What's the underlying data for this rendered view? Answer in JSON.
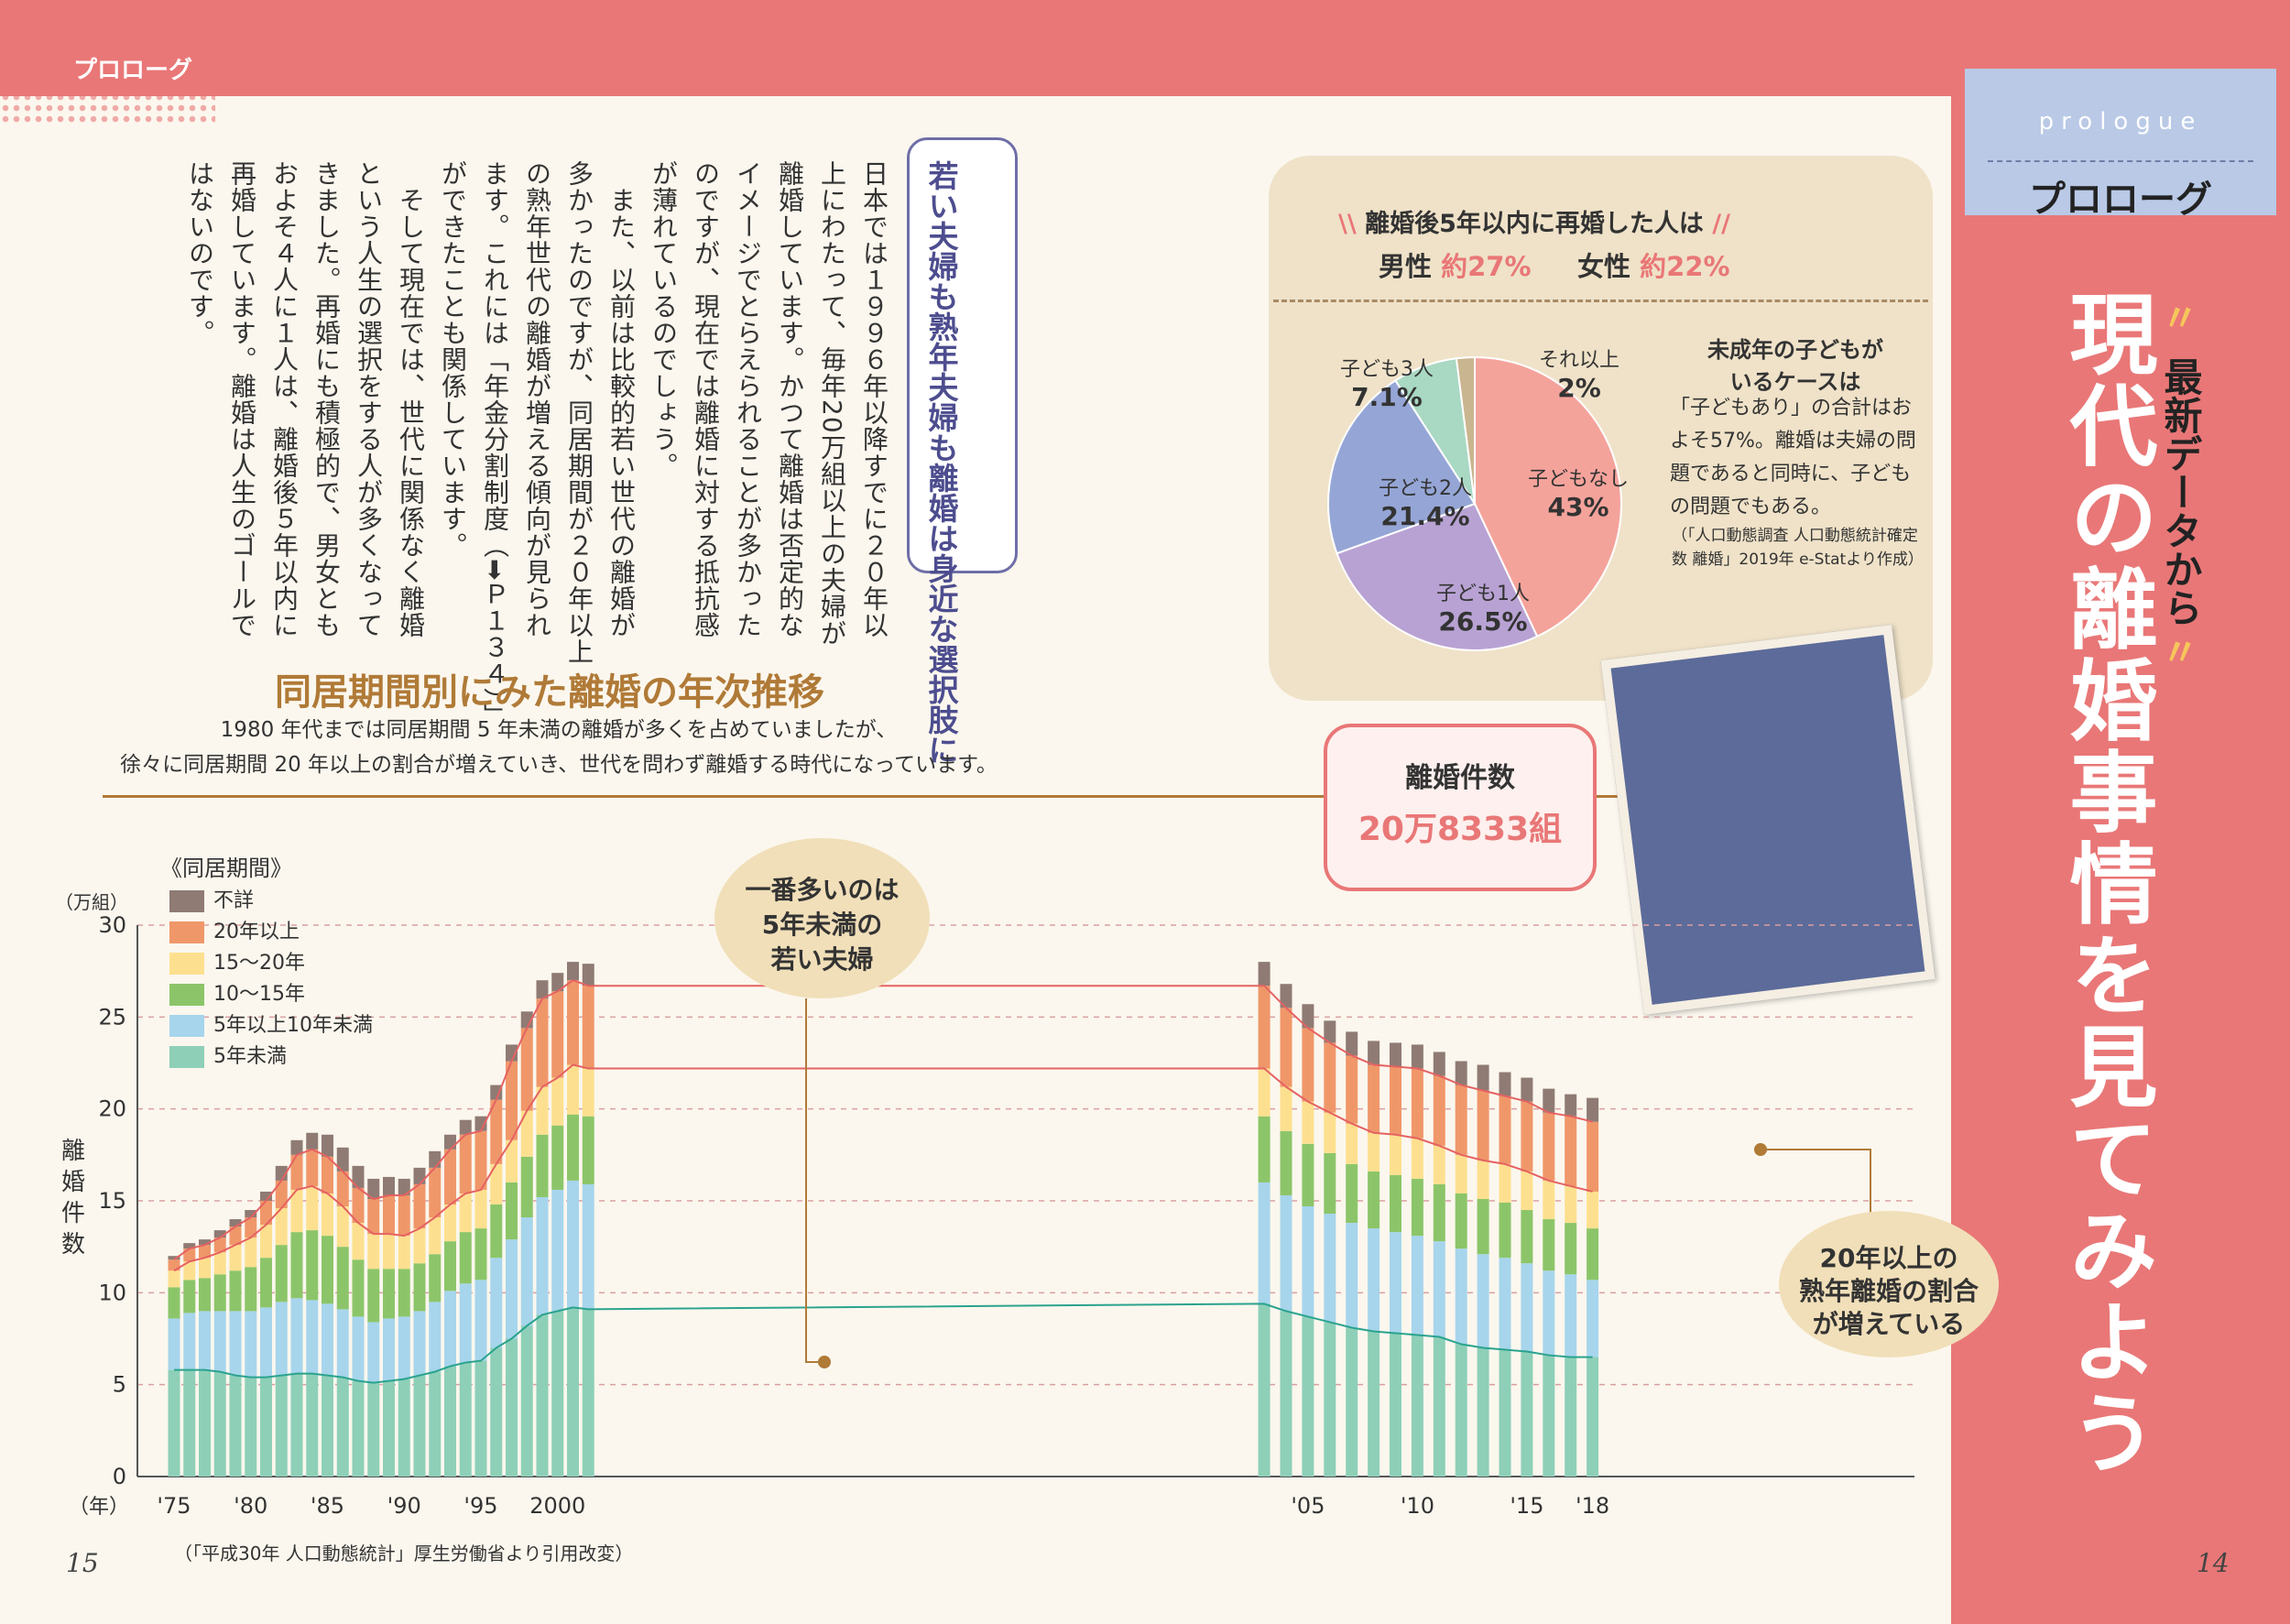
{
  "header": {
    "corner_label": "プロローグ",
    "tag_en": "prologue",
    "tag_jp": "プロローグ"
  },
  "title": {
    "sub": "最新データから",
    "main": "現代の離婚事情を見てみよう"
  },
  "page_numbers": {
    "left": "15",
    "right": "14"
  },
  "callout": "若い夫婦も熟年夫婦も離婚は身近な選択肢に",
  "body_columns": [
    "日本では１９９６年以降すでに２０年以",
    "上にわたって、毎年20万組以上の夫婦が",
    "離婚しています。かつて離婚は否定的な",
    "イメージでとらえられることが多かった",
    "のですが、現在では離婚に対する抵抗感",
    "が薄れているのでしょう。",
    "　また、以前は比較的若い世代の離婚が",
    "多かったのですが、同居期間が２０年以上",
    "の熟年世代の離婚が増える傾向が見られ",
    "ます。これには「年金分割制度（➡Ｐ１３４）」",
    "ができたことも関係しています。",
    "　そして現在では、世代に関係なく離婚",
    "という人生の選択をする人が多くなって",
    "きました。再婚にも積極的で、男女とも",
    "およそ４人に１人は、離婚後５年以内に",
    "再婚しています。離婚は人生のゴールで",
    "はないのです。"
  ],
  "pie": {
    "heading": "離婚後5年以内に再婚した人は",
    "male_label": "男性",
    "male_value": "約27%",
    "female_label": "女性",
    "female_value": "約22%",
    "side_heading_1": "未成年の子どもが",
    "side_heading_2": "いるケースは",
    "side_text": "「子どもあり」の合計はおよそ57%。離婚は夫婦の問題であると同時に、子どもの問題でもある。",
    "side_source": "（「人口動態調査 人口動態統計確定数 離婚」2019年 e-Statより作成）",
    "slices": [
      {
        "label": "子どもなし",
        "value": 43,
        "display": "43%",
        "color": "#f4a39b"
      },
      {
        "label": "子ども1人",
        "value": 26.5,
        "display": "26.5%",
        "color": "#b8a2d3"
      },
      {
        "label": "子ども2人",
        "value": 21.4,
        "display": "21.4%",
        "color": "#95a6d6"
      },
      {
        "label": "子ども3人",
        "value": 7.1,
        "display": "7.1%",
        "color": "#a9d8c3"
      },
      {
        "label": "それ以上",
        "value": 2,
        "display": "2%",
        "color": "#c9b58f"
      }
    ]
  },
  "bubbles": {
    "center_l1": "離婚件数",
    "center_l2": "20万8333組",
    "left": [
      "一番多いのは",
      "5年未満の",
      "若い夫婦"
    ],
    "right": [
      "20年以上の",
      "熟年離婚の割合",
      "が増えている"
    ]
  },
  "chart_data": {
    "type": "bar",
    "title": "同居期間別にみた離婚の年次推移",
    "description": [
      "1980 年代までは同居期間 5 年未満の離婚が多くを占めていましたが、",
      "徐々に同居期間 20 年以上の割合が増えていき、世代を問わず離婚する時代になっています。"
    ],
    "legend_title": "《同居期間》",
    "ylabel": "離婚件数",
    "yunit": "（万組）",
    "xunit": "（年）",
    "ylim": [
      0,
      30
    ],
    "yticks": [
      0,
      5,
      10,
      15,
      20,
      25,
      30
    ],
    "xtick_labels": [
      {
        "year": 1975,
        "label": "'75"
      },
      {
        "year": 1980,
        "label": "'80"
      },
      {
        "year": 1985,
        "label": "'85"
      },
      {
        "year": 1990,
        "label": "'90"
      },
      {
        "year": 1995,
        "label": "'95"
      },
      {
        "year": 2000,
        "label": "2000"
      },
      {
        "year": 2005,
        "label": "'05"
      },
      {
        "year": 2010,
        "label": "'10"
      },
      {
        "year": 2015,
        "label": "'15"
      },
      {
        "year": 2018,
        "label": "'18"
      }
    ],
    "stack_order": [
      "5年未満",
      "5年以上10年未満",
      "10〜15年",
      "15〜20年",
      "20年以上",
      "不詳"
    ],
    "colors": {
      "5年未満": "#8ecfb8",
      "5年以上10年未満": "#a7d5ec",
      "10〜15年": "#8cc569",
      "15〜20年": "#fde08f",
      "20年以上": "#f0976a",
      "不詳": "#8f7b74"
    },
    "years": [
      1975,
      1976,
      1977,
      1978,
      1979,
      1980,
      1981,
      1982,
      1983,
      1984,
      1985,
      1986,
      1987,
      1988,
      1989,
      1990,
      1991,
      1992,
      1993,
      1994,
      1995,
      1996,
      1997,
      1998,
      1999,
      2000,
      2001,
      2002,
      2003,
      2004,
      2005,
      2006,
      2007,
      2008,
      2009,
      2010,
      2011,
      2012,
      2013,
      2014,
      2015,
      2016,
      2017,
      2018
    ],
    "series": [
      {
        "name": "5年未満",
        "values": [
          5.8,
          5.8,
          5.8,
          5.7,
          5.5,
          5.4,
          5.4,
          5.5,
          5.6,
          5.6,
          5.5,
          5.4,
          5.2,
          5.1,
          5.2,
          5.3,
          5.5,
          5.7,
          6.0,
          6.2,
          6.3,
          7.0,
          7.5,
          8.2,
          8.8,
          9.0,
          9.2,
          9.1,
          9.4,
          9.0,
          8.7,
          8.4,
          8.1,
          7.9,
          7.8,
          7.7,
          7.6,
          7.2,
          7.0,
          6.9,
          6.8,
          6.6,
          6.5,
          6.5
        ]
      },
      {
        "name": "5年以上10年未満",
        "values": [
          2.8,
          3.1,
          3.2,
          3.3,
          3.5,
          3.6,
          3.8,
          4.0,
          4.1,
          4.0,
          3.9,
          3.7,
          3.5,
          3.3,
          3.4,
          3.4,
          3.5,
          3.8,
          4.1,
          4.3,
          4.4,
          4.9,
          5.4,
          5.9,
          6.4,
          6.6,
          6.9,
          6.8,
          6.6,
          6.3,
          6.0,
          5.9,
          5.7,
          5.6,
          5.5,
          5.4,
          5.2,
          5.2,
          5.1,
          5.0,
          4.8,
          4.6,
          4.5,
          4.2
        ]
      },
      {
        "name": "10〜15年",
        "values": [
          1.7,
          1.8,
          1.8,
          2.0,
          2.2,
          2.4,
          2.7,
          3.1,
          3.6,
          3.8,
          3.7,
          3.4,
          3.1,
          2.9,
          2.7,
          2.6,
          2.6,
          2.6,
          2.7,
          2.8,
          2.8,
          2.9,
          3.1,
          3.3,
          3.4,
          3.5,
          3.6,
          3.7,
          3.6,
          3.5,
          3.4,
          3.3,
          3.2,
          3.1,
          3.1,
          3.1,
          3.1,
          3.0,
          3.0,
          3.0,
          2.9,
          2.8,
          2.8,
          2.8
        ]
      },
      {
        "name": "15〜20年",
        "values": [
          0.9,
          1.0,
          1.1,
          1.2,
          1.4,
          1.6,
          1.8,
          2.0,
          2.3,
          2.4,
          2.3,
          2.2,
          2.0,
          1.9,
          1.9,
          1.8,
          1.9,
          2.0,
          2.0,
          2.1,
          2.1,
          2.2,
          2.3,
          2.5,
          2.6,
          2.6,
          2.7,
          2.6,
          2.6,
          2.4,
          2.3,
          2.2,
          2.2,
          2.1,
          2.2,
          2.2,
          2.1,
          2.1,
          2.1,
          2.1,
          2.1,
          2.1,
          2.0,
          2.0
        ]
      },
      {
        "name": "20年以上",
        "values": [
          0.6,
          0.7,
          0.7,
          0.8,
          1.0,
          1.1,
          1.3,
          1.5,
          1.9,
          2.0,
          2.0,
          1.9,
          1.9,
          1.9,
          2.1,
          2.2,
          2.4,
          2.7,
          3.0,
          3.2,
          3.2,
          3.5,
          4.3,
          4.5,
          4.8,
          4.7,
          4.6,
          4.5,
          4.5,
          4.3,
          4.0,
          3.8,
          3.7,
          3.7,
          3.7,
          3.8,
          3.8,
          3.8,
          3.8,
          3.7,
          3.8,
          3.7,
          3.8,
          3.8
        ]
      },
      {
        "name": "不詳",
        "values": [
          0.2,
          0.3,
          0.3,
          0.4,
          0.4,
          0.4,
          0.5,
          0.8,
          0.8,
          0.9,
          1.2,
          1.3,
          1.2,
          1.1,
          1.0,
          0.9,
          0.9,
          0.9,
          0.8,
          0.8,
          0.8,
          0.8,
          0.9,
          0.9,
          1.0,
          1.0,
          1.0,
          1.2,
          1.3,
          1.3,
          1.3,
          1.2,
          1.3,
          1.3,
          1.3,
          1.3,
          1.3,
          1.3,
          1.4,
          1.3,
          1.3,
          1.3,
          1.2,
          1.3
        ]
      }
    ],
    "source": "（「平成30年 人口動態統計」厚生労働省より引用改変）"
  }
}
